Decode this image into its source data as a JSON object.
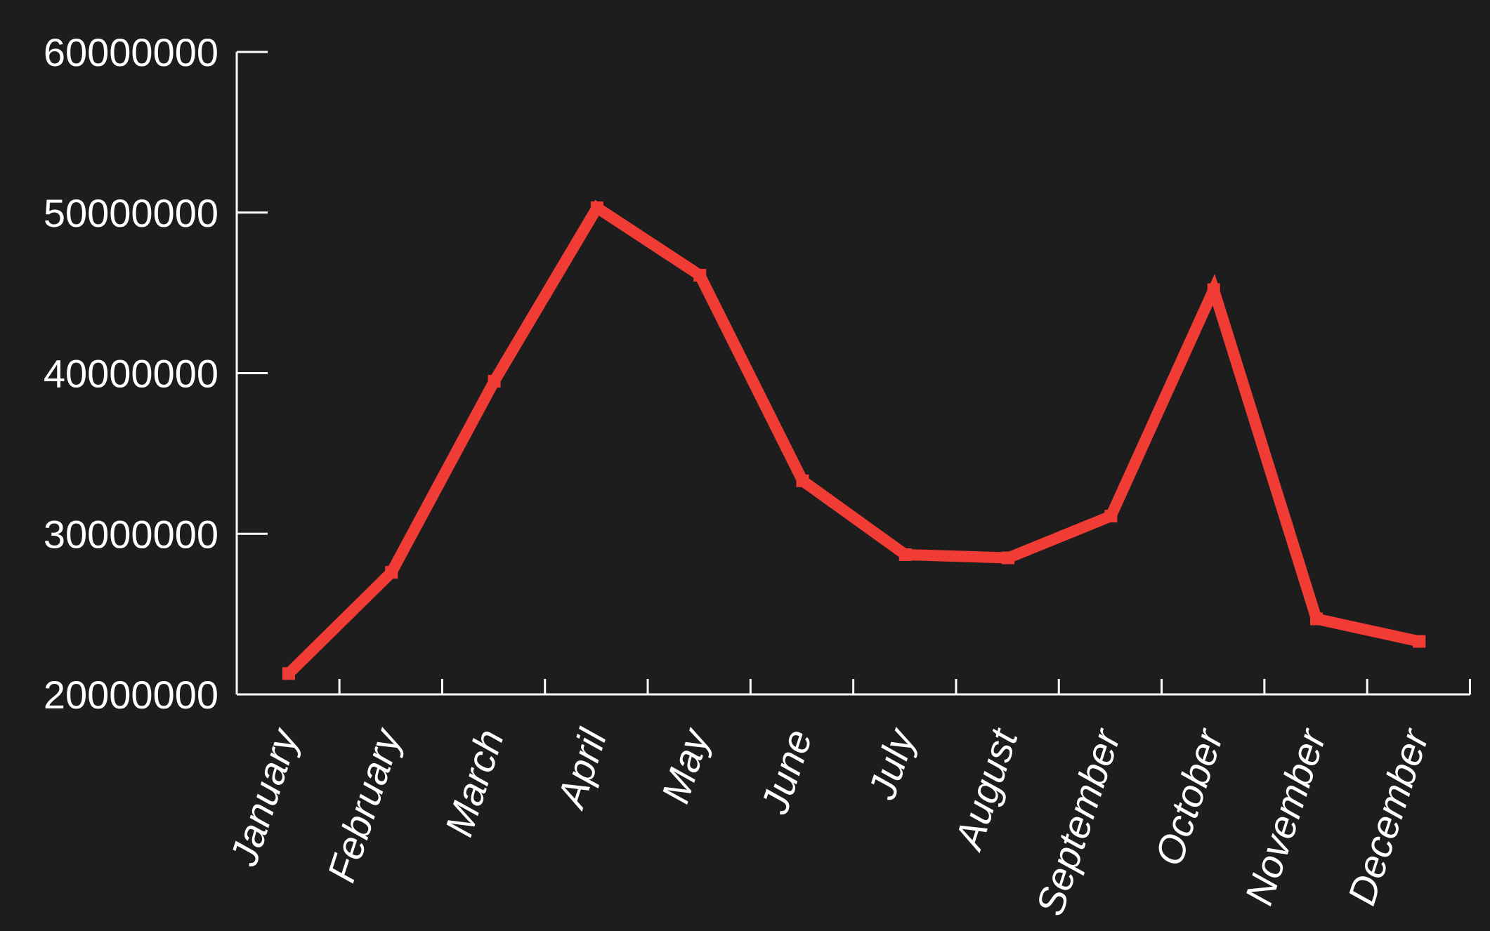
{
  "chart_data": {
    "type": "line",
    "title": "",
    "xlabel": "",
    "ylabel": "",
    "categories": [
      "January",
      "February",
      "March",
      "April",
      "May",
      "June",
      "July",
      "August",
      "September",
      "October",
      "November",
      "December"
    ],
    "series": [
      {
        "values": [
          21300000,
          27600000,
          39500000,
          50300000,
          46100000,
          33300000,
          28700000,
          28500000,
          31100000,
          45200000,
          24700000,
          23300000
        ]
      }
    ],
    "ylim": [
      20000000,
      60000000
    ],
    "yticks": [
      "20000000",
      "30000000",
      "40000000",
      "50000000",
      "60000000"
    ],
    "ytick_values": [
      20000000,
      30000000,
      40000000,
      50000000,
      60000000
    ],
    "grid": false,
    "legend": "none",
    "colors": {
      "background": "#1e1d1e",
      "axis": "#ffffff",
      "series": "#f03c35"
    }
  }
}
